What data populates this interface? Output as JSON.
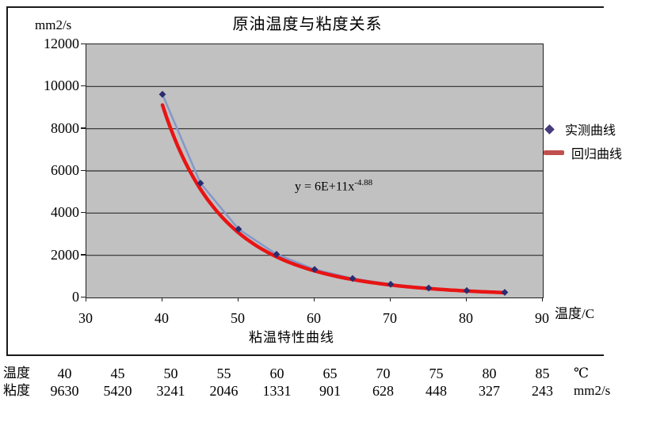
{
  "chart_data": {
    "type": "scatter",
    "title": "原油温度与粘度关系",
    "y_axis_unit_label": "mm2/s",
    "x_axis_label": "温度/C",
    "x_caption": "粘温特性曲线",
    "xlim": [
      30,
      90
    ],
    "ylim": [
      0,
      12000
    ],
    "x_ticks": [
      30,
      40,
      50,
      60,
      70,
      80,
      90
    ],
    "y_ticks": [
      0,
      2000,
      4000,
      6000,
      8000,
      10000,
      12000
    ],
    "grid": "horizontal-major",
    "plot_bg": "#c1c1c1",
    "x": [
      40,
      45,
      50,
      55,
      60,
      65,
      70,
      75,
      80,
      85
    ],
    "series": [
      {
        "name": "实测曲线",
        "kind": "line-with-markers",
        "values": [
          9630,
          5420,
          3241,
          2046,
          1331,
          901,
          628,
          448,
          327,
          243
        ],
        "marker": "diamond",
        "marker_color": "#2b2b6e",
        "line_color": "#8498c8"
      },
      {
        "name": "回归曲线",
        "kind": "power-trendline",
        "coef": 600000000000.0,
        "exponent": -4.88,
        "color": "#e81414"
      }
    ],
    "legend_position": "right"
  },
  "equation": {
    "base": "y = 6E+11x",
    "exp": "-4.88"
  },
  "legend": {
    "items": [
      {
        "label": "实测曲线",
        "swatch": "diamond"
      },
      {
        "label": "回归曲线",
        "swatch": "red-line"
      }
    ]
  },
  "table": {
    "row1_label": "温度",
    "row2_label": "粘度",
    "temperatures": [
      "40",
      "45",
      "50",
      "55",
      "60",
      "65",
      "70",
      "75",
      "80",
      "85"
    ],
    "viscosities": [
      "9630",
      "5420",
      "3241",
      "2046",
      "1331",
      "901",
      "628",
      "448",
      "327",
      "243"
    ],
    "temp_unit": "℃",
    "visc_unit": "mm2/s"
  },
  "colors": {
    "regression_red": "#e81414",
    "measured_line_blue": "#8498c8",
    "marker_navy": "#2b2b6e",
    "legend_diamond_purple": "#453c7c",
    "legend_line_red": "#c0504d",
    "plot_background_gray": "#c1c1c1",
    "gridline": "#2e2e2e"
  }
}
